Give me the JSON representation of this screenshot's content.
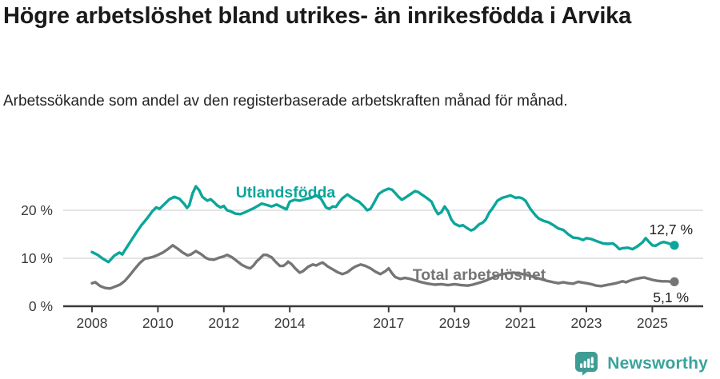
{
  "header": {
    "title": "Högre arbetslöshet bland utrikes- än inrikesfödda i Arvika",
    "subtitle": "Arbetssökande som andel av den registerbaserade arbetskraften månad för månad."
  },
  "footer": {
    "brand": "Newsworthy"
  },
  "colors": {
    "accent_teal": "#0ba69a",
    "series_gray": "#757575",
    "grid": "#dcdcdc",
    "axis": "#3a3a3a",
    "logo_teal": "#3f9c95"
  },
  "chart_data": {
    "type": "line",
    "grid": "horizontal",
    "legend_position": "inline-labels",
    "xlim": [
      2007.85,
      2026.6
    ],
    "ylim": [
      0,
      26.5
    ],
    "x_ticks": [
      {
        "value": 2008,
        "label": "2008"
      },
      {
        "value": 2010,
        "label": "2010"
      },
      {
        "value": 2012,
        "label": "2012"
      },
      {
        "value": 2014,
        "label": "2014"
      },
      {
        "value": 2017,
        "label": "2017"
      },
      {
        "value": 2019,
        "label": "2019"
      },
      {
        "value": 2021,
        "label": "2021"
      },
      {
        "value": 2023,
        "label": "2023"
      },
      {
        "value": 2025,
        "label": "2025"
      }
    ],
    "y_ticks": [
      {
        "value": 0,
        "label": "0 %"
      },
      {
        "value": 10,
        "label": "10 %"
      },
      {
        "value": 20,
        "label": "20 %"
      }
    ],
    "series": [
      {
        "name": "Utlandsfödda",
        "color": "#0ba69a",
        "end_label": "12,7 %",
        "end_value": 12.7,
        "points": [
          [
            2008.0,
            11.3
          ],
          [
            2008.17,
            10.7
          ],
          [
            2008.33,
            9.9
          ],
          [
            2008.5,
            9.2
          ],
          [
            2008.67,
            10.5
          ],
          [
            2008.83,
            11.2
          ],
          [
            2008.92,
            10.8
          ],
          [
            2009.0,
            11.7
          ],
          [
            2009.17,
            13.5
          ],
          [
            2009.33,
            15.2
          ],
          [
            2009.5,
            16.9
          ],
          [
            2009.67,
            18.3
          ],
          [
            2009.83,
            19.8
          ],
          [
            2009.95,
            20.6
          ],
          [
            2010.05,
            20.3
          ],
          [
            2010.2,
            21.3
          ],
          [
            2010.35,
            22.3
          ],
          [
            2010.5,
            22.8
          ],
          [
            2010.65,
            22.4
          ],
          [
            2010.8,
            21.3
          ],
          [
            2010.88,
            20.5
          ],
          [
            2010.95,
            21.0
          ],
          [
            2011.05,
            23.5
          ],
          [
            2011.15,
            25.0
          ],
          [
            2011.25,
            24.2
          ],
          [
            2011.35,
            22.8
          ],
          [
            2011.5,
            22.0
          ],
          [
            2011.6,
            22.3
          ],
          [
            2011.7,
            21.7
          ],
          [
            2011.8,
            21.0
          ],
          [
            2011.9,
            20.6
          ],
          [
            2012.0,
            20.9
          ],
          [
            2012.1,
            20.0
          ],
          [
            2012.2,
            19.8
          ],
          [
            2012.35,
            19.3
          ],
          [
            2012.5,
            19.2
          ],
          [
            2012.65,
            19.6
          ],
          [
            2012.8,
            20.1
          ],
          [
            2012.9,
            20.4
          ],
          [
            2013.0,
            20.8
          ],
          [
            2013.15,
            21.4
          ],
          [
            2013.3,
            21.1
          ],
          [
            2013.45,
            20.8
          ],
          [
            2013.6,
            21.2
          ],
          [
            2013.75,
            20.7
          ],
          [
            2013.9,
            20.2
          ],
          [
            2014.0,
            21.8
          ],
          [
            2014.15,
            22.2
          ],
          [
            2014.3,
            22.0
          ],
          [
            2014.5,
            22.4
          ],
          [
            2014.65,
            22.6
          ],
          [
            2014.8,
            23.1
          ],
          [
            2014.95,
            22.4
          ],
          [
            2015.1,
            20.6
          ],
          [
            2015.2,
            20.3
          ],
          [
            2015.3,
            20.8
          ],
          [
            2015.4,
            20.7
          ],
          [
            2015.5,
            21.7
          ],
          [
            2015.6,
            22.5
          ],
          [
            2015.75,
            23.3
          ],
          [
            2015.85,
            22.8
          ],
          [
            2016.0,
            22.1
          ],
          [
            2016.1,
            21.8
          ],
          [
            2016.25,
            20.8
          ],
          [
            2016.35,
            20.0
          ],
          [
            2016.45,
            20.3
          ],
          [
            2016.55,
            21.5
          ],
          [
            2016.7,
            23.4
          ],
          [
            2016.85,
            24.1
          ],
          [
            2017.0,
            24.5
          ],
          [
            2017.1,
            24.3
          ],
          [
            2017.2,
            23.6
          ],
          [
            2017.3,
            22.8
          ],
          [
            2017.4,
            22.2
          ],
          [
            2017.5,
            22.6
          ],
          [
            2017.65,
            23.3
          ],
          [
            2017.8,
            24.0
          ],
          [
            2017.9,
            23.8
          ],
          [
            2018.0,
            23.3
          ],
          [
            2018.15,
            22.6
          ],
          [
            2018.3,
            21.8
          ],
          [
            2018.4,
            20.3
          ],
          [
            2018.5,
            19.2
          ],
          [
            2018.6,
            19.6
          ],
          [
            2018.7,
            20.8
          ],
          [
            2018.8,
            19.8
          ],
          [
            2018.9,
            18.1
          ],
          [
            2019.0,
            17.2
          ],
          [
            2019.15,
            16.7
          ],
          [
            2019.25,
            16.9
          ],
          [
            2019.4,
            16.2
          ],
          [
            2019.5,
            15.8
          ],
          [
            2019.6,
            16.1
          ],
          [
            2019.75,
            17.1
          ],
          [
            2019.85,
            17.4
          ],
          [
            2019.95,
            18.1
          ],
          [
            2020.05,
            19.5
          ],
          [
            2020.15,
            20.4
          ],
          [
            2020.3,
            22.0
          ],
          [
            2020.45,
            22.6
          ],
          [
            2020.6,
            22.9
          ],
          [
            2020.7,
            23.1
          ],
          [
            2020.85,
            22.6
          ],
          [
            2020.95,
            22.7
          ],
          [
            2021.05,
            22.5
          ],
          [
            2021.15,
            22.0
          ],
          [
            2021.3,
            20.3
          ],
          [
            2021.45,
            19.0
          ],
          [
            2021.55,
            18.3
          ],
          [
            2021.7,
            17.8
          ],
          [
            2021.85,
            17.5
          ],
          [
            2022.0,
            16.9
          ],
          [
            2022.15,
            16.2
          ],
          [
            2022.3,
            15.9
          ],
          [
            2022.45,
            15.0
          ],
          [
            2022.6,
            14.3
          ],
          [
            2022.75,
            14.2
          ],
          [
            2022.9,
            13.8
          ],
          [
            2023.0,
            14.2
          ],
          [
            2023.15,
            14.0
          ],
          [
            2023.3,
            13.6
          ],
          [
            2023.5,
            13.1
          ],
          [
            2023.65,
            13.0
          ],
          [
            2023.8,
            13.1
          ],
          [
            2023.9,
            12.6
          ],
          [
            2024.0,
            11.9
          ],
          [
            2024.1,
            12.1
          ],
          [
            2024.25,
            12.2
          ],
          [
            2024.4,
            11.9
          ],
          [
            2024.55,
            12.5
          ],
          [
            2024.7,
            13.3
          ],
          [
            2024.8,
            14.2
          ],
          [
            2024.9,
            13.4
          ],
          [
            2025.0,
            12.7
          ],
          [
            2025.1,
            12.6
          ],
          [
            2025.25,
            13.2
          ],
          [
            2025.35,
            13.4
          ],
          [
            2025.5,
            13.1
          ],
          [
            2025.6,
            12.8
          ],
          [
            2025.67,
            12.7
          ]
        ]
      },
      {
        "name": "Total arbetslöshet",
        "color": "#757575",
        "end_label": "5,1 %",
        "end_value": 5.1,
        "points": [
          [
            2008.0,
            4.8
          ],
          [
            2008.1,
            5.0
          ],
          [
            2008.25,
            4.2
          ],
          [
            2008.4,
            3.8
          ],
          [
            2008.55,
            3.7
          ],
          [
            2008.7,
            4.1
          ],
          [
            2008.85,
            4.5
          ],
          [
            2009.0,
            5.3
          ],
          [
            2009.15,
            6.5
          ],
          [
            2009.3,
            7.8
          ],
          [
            2009.45,
            9.0
          ],
          [
            2009.6,
            9.9
          ],
          [
            2009.75,
            10.1
          ],
          [
            2009.9,
            10.4
          ],
          [
            2010.0,
            10.7
          ],
          [
            2010.15,
            11.2
          ],
          [
            2010.3,
            11.9
          ],
          [
            2010.45,
            12.7
          ],
          [
            2010.6,
            12.0
          ],
          [
            2010.75,
            11.2
          ],
          [
            2010.9,
            10.6
          ],
          [
            2011.0,
            10.8
          ],
          [
            2011.15,
            11.5
          ],
          [
            2011.3,
            10.9
          ],
          [
            2011.45,
            10.1
          ],
          [
            2011.55,
            9.8
          ],
          [
            2011.7,
            9.7
          ],
          [
            2011.85,
            10.1
          ],
          [
            2012.0,
            10.4
          ],
          [
            2012.1,
            10.7
          ],
          [
            2012.25,
            10.2
          ],
          [
            2012.4,
            9.4
          ],
          [
            2012.55,
            8.6
          ],
          [
            2012.7,
            8.1
          ],
          [
            2012.8,
            7.9
          ],
          [
            2012.9,
            8.5
          ],
          [
            2013.0,
            9.4
          ],
          [
            2013.1,
            10.0
          ],
          [
            2013.2,
            10.7
          ],
          [
            2013.3,
            10.7
          ],
          [
            2013.45,
            10.2
          ],
          [
            2013.55,
            9.4
          ],
          [
            2013.7,
            8.4
          ],
          [
            2013.8,
            8.4
          ],
          [
            2013.9,
            8.9
          ],
          [
            2013.95,
            9.3
          ],
          [
            2014.05,
            8.8
          ],
          [
            2014.15,
            8.0
          ],
          [
            2014.3,
            7.0
          ],
          [
            2014.4,
            7.3
          ],
          [
            2014.55,
            8.2
          ],
          [
            2014.7,
            8.7
          ],
          [
            2014.8,
            8.5
          ],
          [
            2014.95,
            9.0
          ],
          [
            2015.0,
            9.1
          ],
          [
            2015.15,
            8.3
          ],
          [
            2015.3,
            7.7
          ],
          [
            2015.45,
            7.1
          ],
          [
            2015.6,
            6.7
          ],
          [
            2015.75,
            7.1
          ],
          [
            2015.9,
            7.9
          ],
          [
            2016.0,
            8.3
          ],
          [
            2016.15,
            8.7
          ],
          [
            2016.3,
            8.4
          ],
          [
            2016.45,
            7.9
          ],
          [
            2016.6,
            7.2
          ],
          [
            2016.75,
            6.7
          ],
          [
            2016.9,
            7.3
          ],
          [
            2017.0,
            7.9
          ],
          [
            2017.1,
            6.9
          ],
          [
            2017.2,
            6.1
          ],
          [
            2017.35,
            5.7
          ],
          [
            2017.5,
            5.9
          ],
          [
            2017.65,
            5.7
          ],
          [
            2017.8,
            5.4
          ],
          [
            2018.0,
            5.0
          ],
          [
            2018.2,
            4.7
          ],
          [
            2018.4,
            4.5
          ],
          [
            2018.6,
            4.6
          ],
          [
            2018.8,
            4.4
          ],
          [
            2019.0,
            4.6
          ],
          [
            2019.2,
            4.4
          ],
          [
            2019.4,
            4.3
          ],
          [
            2019.55,
            4.5
          ],
          [
            2019.7,
            4.8
          ],
          [
            2019.85,
            5.1
          ],
          [
            2020.0,
            5.5
          ],
          [
            2020.2,
            6.1
          ],
          [
            2020.4,
            6.6
          ],
          [
            2020.6,
            6.9
          ],
          [
            2020.8,
            7.0
          ],
          [
            2021.0,
            6.8
          ],
          [
            2021.2,
            6.5
          ],
          [
            2021.4,
            6.1
          ],
          [
            2021.6,
            5.7
          ],
          [
            2021.8,
            5.3
          ],
          [
            2022.0,
            5.0
          ],
          [
            2022.15,
            4.8
          ],
          [
            2022.3,
            5.0
          ],
          [
            2022.45,
            4.8
          ],
          [
            2022.6,
            4.7
          ],
          [
            2022.75,
            5.1
          ],
          [
            2022.9,
            4.9
          ],
          [
            2023.0,
            4.8
          ],
          [
            2023.15,
            4.6
          ],
          [
            2023.3,
            4.3
          ],
          [
            2023.45,
            4.2
          ],
          [
            2023.6,
            4.4
          ],
          [
            2023.75,
            4.6
          ],
          [
            2023.9,
            4.8
          ],
          [
            2024.0,
            5.0
          ],
          [
            2024.1,
            5.2
          ],
          [
            2024.2,
            5.0
          ],
          [
            2024.35,
            5.4
          ],
          [
            2024.5,
            5.7
          ],
          [
            2024.65,
            5.9
          ],
          [
            2024.75,
            6.0
          ],
          [
            2024.9,
            5.7
          ],
          [
            2025.0,
            5.5
          ],
          [
            2025.15,
            5.3
          ],
          [
            2025.3,
            5.2
          ],
          [
            2025.45,
            5.2
          ],
          [
            2025.6,
            5.1
          ],
          [
            2025.67,
            5.1
          ]
        ]
      }
    ]
  }
}
